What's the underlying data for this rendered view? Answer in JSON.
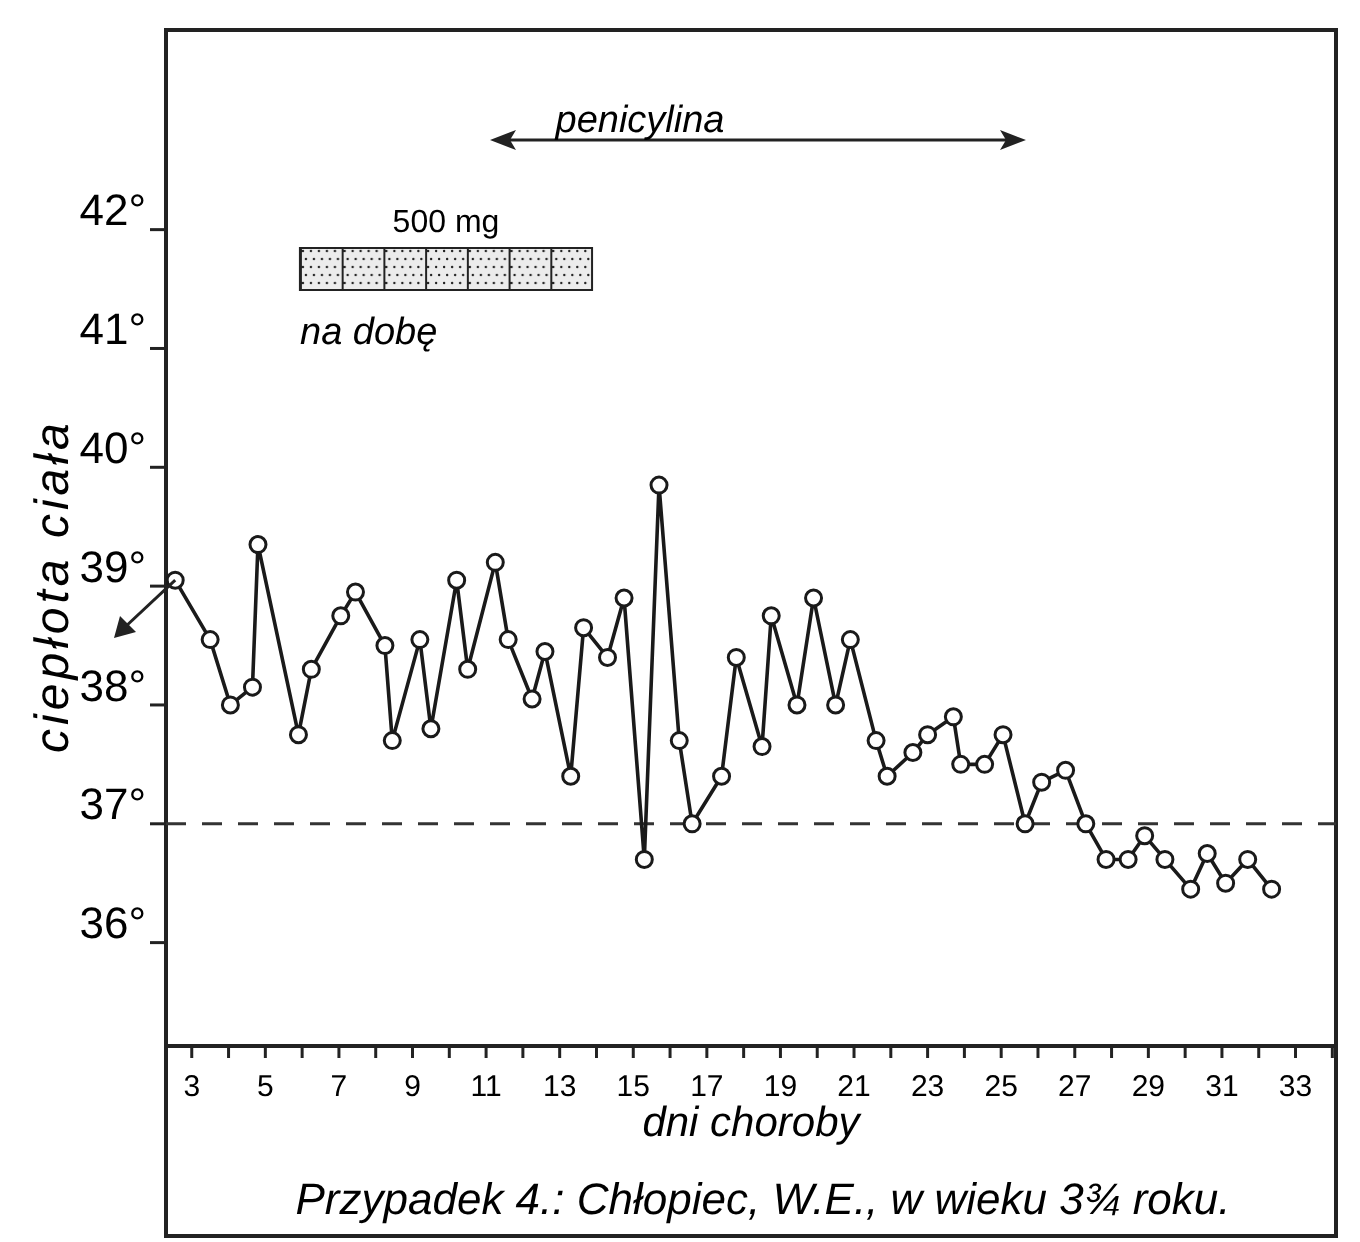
{
  "chart_data": {
    "type": "line",
    "title": "Przypadek 4.: Chłopiec, W.E., w wieku 3¾ roku.",
    "xlabel": "dni choroby",
    "ylabel": "ciepłota ciała",
    "annotations": [
      "penicylina",
      "na dobę"
    ],
    "bands": [
      {
        "axis": "x",
        "from": 5.94,
        "to": 13.88,
        "label": "500 mg",
        "color": "#222222"
      }
    ],
    "series": [
      {
        "color": "#1a1a1a",
        "x": [
          2.55,
          3.5,
          4.05,
          4.65,
          4.8,
          5.9,
          6.25,
          7.05,
          7.45,
          8.25,
          8.45,
          9.2,
          9.5,
          10.2,
          10.5,
          11.25,
          11.6,
          12.25,
          12.6,
          13.3,
          13.65,
          14.3,
          14.75,
          15.3,
          15.7,
          16.25,
          16.6,
          17.4,
          17.8,
          18.5,
          18.75,
          19.45,
          19.9,
          20.5,
          20.9,
          21.6,
          21.9,
          22.6,
          23,
          23.7,
          23.9,
          24.55,
          25.05,
          25.65,
          26.1,
          26.75,
          27.3,
          27.85,
          28.45,
          28.9,
          29.45,
          30.15,
          30.6,
          31.1,
          31.7,
          32.35
        ],
        "values": [
          39.05,
          38.55,
          38,
          38.15,
          39.35,
          37.75,
          38.3,
          38.75,
          38.95,
          38.5,
          37.7,
          38.55,
          37.8,
          39.05,
          38.3,
          39.2,
          38.55,
          38.05,
          38.45,
          37.4,
          38.65,
          38.4,
          38.9,
          36.7,
          39.85,
          37.7,
          37,
          37.4,
          38.4,
          37.65,
          38.75,
          38,
          38.9,
          38,
          38.55,
          37.7,
          37.4,
          37.6,
          37.75,
          37.9,
          37.5,
          37.5,
          37.75,
          37,
          37.35,
          37.45,
          37,
          36.7,
          36.7,
          36.9,
          36.7,
          36.45,
          36.75,
          36.5,
          36.7,
          36.45
        ]
      }
    ],
    "xlim": [
      2.3,
      34.1
    ],
    "ylim": [
      35.13,
      43.68
    ],
    "xticks": [
      3,
      {
        "value": 4,
        "label": null
      },
      5,
      {
        "value": 6,
        "label": null
      },
      7,
      {
        "value": 8,
        "label": null
      },
      9,
      {
        "value": 10,
        "label": null
      },
      11,
      {
        "value": 12,
        "label": null
      },
      13,
      {
        "value": 14,
        "label": null
      },
      15,
      {
        "value": 16,
        "label": null
      },
      17,
      {
        "value": 18,
        "label": null
      },
      19,
      {
        "value": 20,
        "label": null
      },
      21,
      {
        "value": 22,
        "label": null
      },
      23,
      {
        "value": 24,
        "label": null
      },
      25,
      {
        "value": 26,
        "label": null
      },
      27,
      {
        "value": 28,
        "label": null
      },
      29,
      {
        "value": 30,
        "label": null
      },
      31,
      {
        "value": 32,
        "label": null
      },
      33,
      {
        "value": 34,
        "label": null
      }
    ],
    "yticks": [
      {
        "value": 36,
        "label": "36°"
      },
      {
        "value": 37,
        "label": "37°"
      },
      {
        "value": 38,
        "label": "38°"
      },
      {
        "value": 39,
        "label": "39°"
      },
      {
        "value": 40,
        "label": "40°"
      },
      {
        "value": 41,
        "label": "41°"
      },
      {
        "value": 42,
        "label": "42°"
      }
    ],
    "ref_lines": [
      {
        "axis": "y",
        "value": 37,
        "line_style": "dashed"
      }
    ],
    "marker": "circle"
  }
}
